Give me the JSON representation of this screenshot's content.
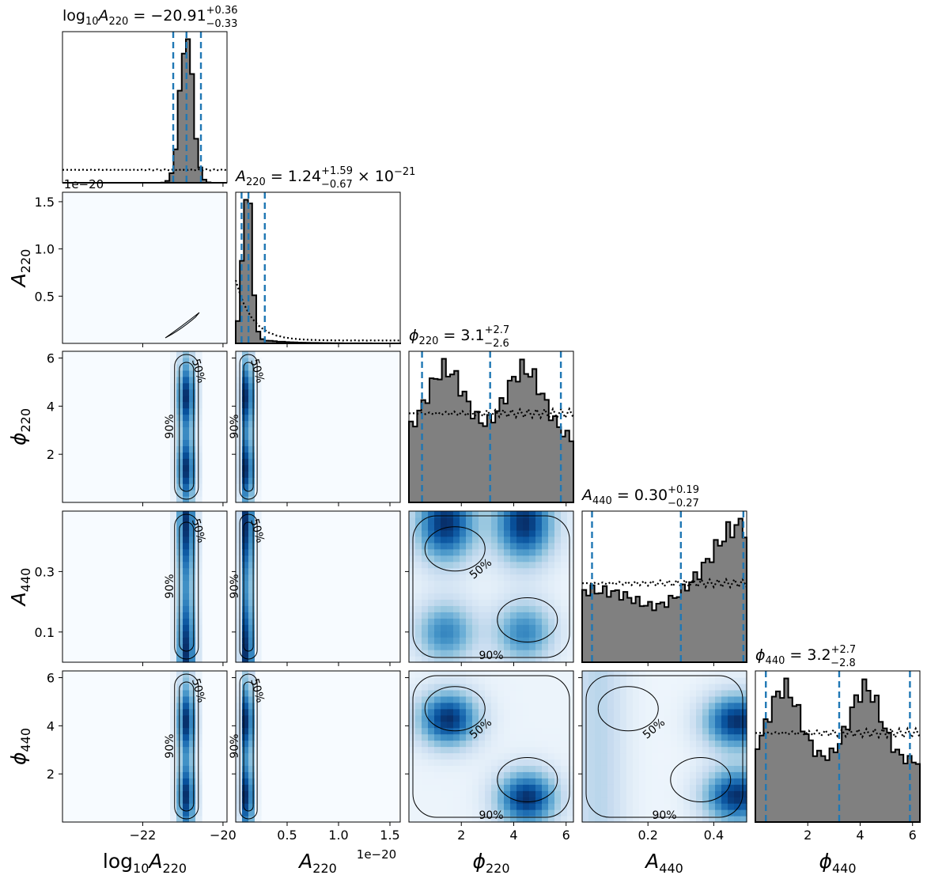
{
  "chart_data": {
    "type": "corner",
    "parameters": [
      {
        "id": "log10A220",
        "label_main": "log",
        "label_sub1": "10",
        "label_main2": "A",
        "label_sub2": "220",
        "title_value": "−20.91",
        "title_plus": "+0.36",
        "title_minus": "−0.33",
        "title_suffix": "",
        "range": [
          -24.0,
          -19.9
        ],
        "median": -20.91,
        "lower": -21.24,
        "upper": -20.55,
        "ticks": [
          -22,
          -20
        ],
        "tick_labels": [
          "−22",
          "−20"
        ]
      },
      {
        "id": "A220",
        "label_main": "A",
        "label_sub": "220",
        "title_value": "1.24",
        "title_plus": "+1.59",
        "title_minus": "−0.67",
        "title_suffix": "× 10",
        "title_exp": "−21",
        "range": [
          0.0,
          1.6
        ],
        "median": 0.124,
        "lower": 0.057,
        "upper": 0.283,
        "ticks": [
          0.5,
          1.0,
          1.5
        ],
        "tick_labels": [
          "0.5",
          "1.0",
          "1.5"
        ],
        "offset_text": "1e−20"
      },
      {
        "id": "phi220",
        "label_main": "ϕ",
        "label_sub": "220",
        "title_value": "3.1",
        "title_plus": "+2.7",
        "title_minus": "−2.6",
        "title_suffix": "",
        "range": [
          0.0,
          6.28
        ],
        "median": 3.1,
        "lower": 0.5,
        "upper": 5.8,
        "ticks": [
          2,
          4,
          6
        ],
        "tick_labels": [
          "2",
          "4",
          "6"
        ]
      },
      {
        "id": "A440",
        "label_main": "A",
        "label_sub": "440",
        "title_value": "0.30",
        "title_plus": "+0.19",
        "title_minus": "−0.27",
        "title_suffix": "",
        "range": [
          0.0,
          0.5
        ],
        "median": 0.3,
        "lower": 0.03,
        "upper": 0.49,
        "ticks": [
          0.1,
          0.3
        ],
        "tick_labels": [
          "0.1",
          "0.3"
        ],
        "xticks": [
          0.2,
          0.4
        ],
        "xtick_labels": [
          "0.2",
          "0.4"
        ]
      },
      {
        "id": "phi440",
        "label_main": "ϕ",
        "label_sub": "440",
        "title_value": "3.2",
        "title_plus": "+2.7",
        "title_minus": "−2.8",
        "title_suffix": "",
        "range": [
          0.0,
          6.28
        ],
        "median": 3.2,
        "lower": 0.4,
        "upper": 5.9,
        "ticks": [
          2,
          4,
          6
        ],
        "tick_labels": [
          "2",
          "4",
          "6"
        ]
      }
    ],
    "histograms": {
      "log10A220": {
        "shape": "gaussian",
        "mu": -20.91,
        "sigma": 0.16,
        "prior": "flat"
      },
      "A220": {
        "shape": "peak",
        "mode": 0.11,
        "prior": "falling"
      },
      "phi220": {
        "shape": "bimodal",
        "peaks": [
          1.4,
          4.4
        ],
        "prior": "flat"
      },
      "A440": {
        "shape": "rising",
        "prior": "flat"
      },
      "phi440": {
        "shape": "bimodal",
        "peaks": [
          1.1,
          4.2
        ],
        "prior": "flat"
      }
    },
    "contour_labels": [
      "50%",
      "90%"
    ],
    "colors": {
      "hist_fill": "#808080",
      "quantile_line": "#1f77b4",
      "density_dark": "#08306b",
      "density_light": "#f7fbff",
      "contour": "#000000"
    }
  }
}
